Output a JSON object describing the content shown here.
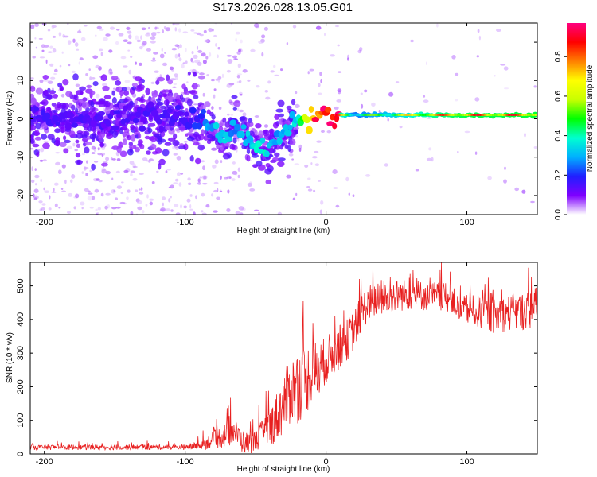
{
  "title": "S173.2026.028.13.05.G01",
  "chart_data": [
    {
      "type": "heatmap",
      "title": "S173.2026.028.13.05.G01",
      "xlabel": "Height of straight line (km)",
      "ylabel": "Frequency (Hz)",
      "xlim": [
        -210,
        150
      ],
      "ylim": [
        -25,
        25
      ],
      "x_ticks": [
        -200,
        -100,
        0,
        100
      ],
      "x_tick_labels": [
        "-200",
        "-100",
        "0",
        "100"
      ],
      "y_ticks": [
        -20,
        -10,
        0,
        10,
        20
      ],
      "y_tick_labels": [
        "-20",
        "-10",
        "0",
        "10",
        "20"
      ],
      "colorbar": {
        "label": "Normalized spectral amplitude",
        "range": [
          0,
          0.97
        ],
        "ticks": [
          0.0,
          0.2,
          0.4,
          0.6,
          0.8
        ],
        "tick_labels": [
          "0.0",
          "0.2",
          "0.4",
          "0.6",
          "0.8"
        ],
        "colors": [
          "#ffffff",
          "#7f00ff",
          "#1f1fff",
          "#00b0ff",
          "#00ffd0",
          "#00ff00",
          "#c8ff00",
          "#ffff00",
          "#ff8000",
          "#ff0000",
          "#ff0080"
        ]
      },
      "ridge": {
        "x": [
          -205,
          -180,
          -150,
          -120,
          -100,
          -90,
          -80,
          -75,
          -70,
          -65,
          -60,
          -55,
          -50,
          -45,
          -40,
          -35,
          -30,
          -25,
          -20,
          -15,
          -10,
          -5,
          0,
          5,
          10,
          20,
          40,
          60,
          80,
          100,
          120,
          150
        ],
        "y": [
          1,
          0,
          0,
          0,
          1,
          0,
          -3,
          -5,
          -6,
          -1,
          -3,
          -5,
          -7,
          -8,
          -7,
          -5,
          -3,
          -2,
          -1,
          0,
          0,
          1,
          2,
          1,
          1,
          1,
          1,
          1,
          1,
          1,
          1,
          1
        ],
        "amplitude": [
          0.15,
          0.14,
          0.14,
          0.14,
          0.15,
          0.2,
          0.3,
          0.32,
          0.33,
          0.25,
          0.3,
          0.33,
          0.35,
          0.36,
          0.35,
          0.3,
          0.3,
          0.28,
          0.4,
          0.55,
          0.8,
          0.85,
          0.9,
          0.9,
          0.85,
          0.5,
          0.6,
          0.75,
          0.85,
          0.9,
          0.9,
          0.92
        ]
      }
    },
    {
      "type": "line",
      "xlabel": "Height of straight line (km)",
      "ylabel": "SNR (10 * v/v)",
      "xlim": [
        -210,
        150
      ],
      "ylim": [
        0,
        570
      ],
      "x_ticks": [
        -200,
        -100,
        0,
        100
      ],
      "x_tick_labels": [
        "-200",
        "-100",
        "0",
        "100"
      ],
      "y_ticks": [
        0,
        100,
        200,
        300,
        400,
        500
      ],
      "y_tick_labels": [
        "0",
        "100",
        "200",
        "300",
        "400",
        "500"
      ],
      "color": "#e82020",
      "series": [
        {
          "name": "SNR",
          "x": [
            -210,
            -200,
            -180,
            -160,
            -140,
            -120,
            -100,
            -90,
            -80,
            -70,
            -65,
            -60,
            -55,
            -50,
            -45,
            -40,
            -35,
            -30,
            -25,
            -20,
            -15,
            -10,
            -5,
            0,
            5,
            10,
            15,
            20,
            25,
            30,
            40,
            50,
            60,
            70,
            80,
            90,
            95,
            100,
            110,
            120,
            130,
            140,
            145,
            150
          ],
          "values": [
            20,
            20,
            20,
            20,
            20,
            20,
            20,
            25,
            40,
            60,
            70,
            40,
            30,
            40,
            60,
            80,
            110,
            150,
            190,
            200,
            220,
            240,
            250,
            280,
            300,
            320,
            340,
            370,
            420,
            450,
            460,
            470,
            475,
            470,
            470,
            460,
            420,
            430,
            420,
            410,
            420,
            425,
            430,
            440
          ]
        }
      ],
      "noise": {
        "x": [
          -210,
          -100,
          -90,
          -70,
          -50,
          -30,
          -20,
          -10,
          0,
          20,
          40,
          70,
          90,
          110,
          150
        ],
        "amplitude": [
          8,
          8,
          12,
          40,
          30,
          90,
          110,
          100,
          70,
          60,
          50,
          45,
          40,
          50,
          60
        ]
      }
    }
  ]
}
